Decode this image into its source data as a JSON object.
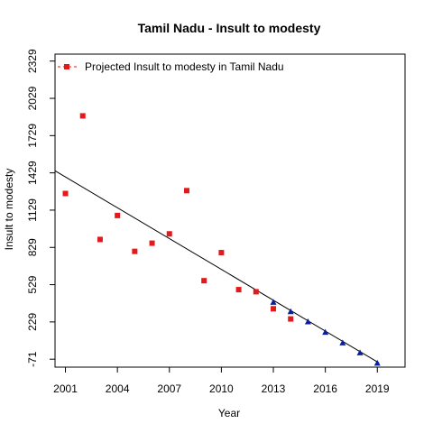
{
  "chart_data": {
    "type": "scatter",
    "title": "Tamil Nadu  -  Insult to modesty",
    "xlabel": "Year",
    "ylabel": "Insult to modesty",
    "xlim": [
      2000.4,
      2020.6
    ],
    "ylim": [
      -135,
      2385
    ],
    "x_ticks": [
      2001,
      2004,
      2007,
      2010,
      2013,
      2016,
      2019
    ],
    "y_ticks": [
      -71,
      229,
      529,
      829,
      1129,
      1429,
      1729,
      2029,
      2329
    ],
    "grid": false,
    "legend_position": "top-left",
    "series": [
      {
        "name": "",
        "marker": "square",
        "color": "#e31a1c",
        "x": [
          2001,
          2002,
          2003,
          2004,
          2005,
          2006,
          2007,
          2008,
          2009,
          2010,
          2011,
          2012,
          2013,
          2014
        ],
        "y": [
          1263,
          1888,
          893,
          1086,
          797,
          863,
          938,
          1286,
          561,
          787,
          489,
          472,
          335,
          253
        ]
      },
      {
        "name": "Projected  Insult to modesty  in  Tamil Nadu",
        "marker": "triangle",
        "color": "#0a1fa0",
        "x": [
          2013,
          2014,
          2015,
          2016,
          2017,
          2018,
          2019
        ],
        "y": [
          389,
          313,
          232,
          147,
          62,
          -18,
          -101
        ]
      }
    ],
    "trend_line": {
      "color": "#000000",
      "x": [
        2000.4,
        2019.1
      ],
      "y": [
        1446,
        -101
      ]
    }
  }
}
